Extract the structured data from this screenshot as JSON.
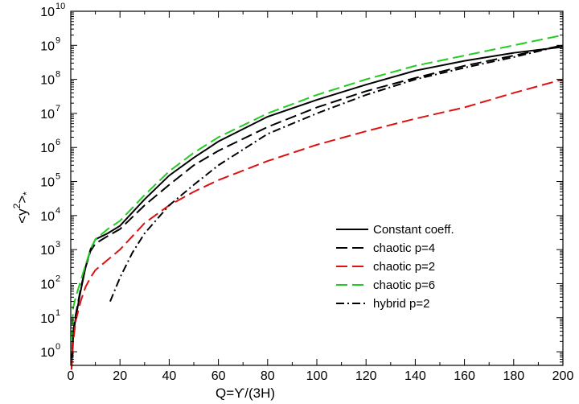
{
  "chart_data": {
    "type": "line",
    "title": "",
    "xlabel": "Q=ϒ/(3H)",
    "ylabel": "<y²>*",
    "ylabel_parts": {
      "open": "<y",
      "sup": "2",
      "close": ">",
      "sub": "*"
    },
    "xlim": [
      0,
      200
    ],
    "ylim_log10": [
      -0.4,
      10
    ],
    "yscale": "log",
    "grid": false,
    "legend_position": "right-center",
    "x_ticks": [
      0,
      20,
      40,
      60,
      80,
      100,
      120,
      140,
      160,
      180,
      200
    ],
    "x_tick_labels": [
      "0",
      "20",
      "40",
      "60",
      "80",
      "100",
      "120",
      "140",
      "160",
      "180",
      "200"
    ],
    "y_tick_exponents": [
      0,
      1,
      2,
      3,
      4,
      5,
      6,
      7,
      8,
      9,
      10
    ],
    "y_tick_base": "10",
    "series": [
      {
        "name": "Constant coeff.",
        "color": "#000000",
        "dash": "solid",
        "x": [
          0.3,
          1,
          2,
          4,
          6,
          8,
          10,
          15,
          20,
          30,
          40,
          50,
          60,
          80,
          100,
          120,
          140,
          160,
          180,
          200
        ],
        "y": [
          0.3,
          3,
          10,
          60,
          300,
          1000,
          2000,
          3000,
          5000,
          30000,
          150000,
          500000,
          1500000,
          8000000,
          25000000,
          70000000,
          180000000,
          350000000,
          600000000,
          900000000
        ]
      },
      {
        "name": "chaotic p=4",
        "color": "#000000",
        "dash": "long-dash",
        "x": [
          0.3,
          1,
          2,
          4,
          6,
          8,
          10,
          15,
          20,
          30,
          40,
          50,
          60,
          80,
          100,
          120,
          140,
          160,
          180,
          200
        ],
        "y": [
          0.4,
          4,
          12,
          70,
          300,
          900,
          1500,
          2500,
          4000,
          20000,
          80000,
          300000,
          800000,
          4000000,
          15000000,
          45000000,
          110000000,
          250000000,
          500000000,
          1000000000
        ]
      },
      {
        "name": "chaotic p=2",
        "color": "#dd1111",
        "dash": "long-dash",
        "x": [
          0.3,
          1,
          2,
          4,
          6,
          8,
          10,
          15,
          20,
          30,
          40,
          50,
          60,
          80,
          100,
          120,
          140,
          160,
          180,
          200
        ],
        "y": [
          0.3,
          2,
          8,
          30,
          80,
          150,
          250,
          500,
          1000,
          6000,
          20000,
          50000,
          110000,
          400000,
          1200000,
          3000000,
          7000000,
          15000000,
          40000000,
          100000000
        ]
      },
      {
        "name": "chaotic p=6",
        "color": "#22cc22",
        "dash": "long-dash",
        "x": [
          0.3,
          1,
          2,
          4,
          6,
          8,
          10,
          15,
          20,
          30,
          40,
          50,
          60,
          80,
          100,
          120,
          140,
          160,
          180,
          200
        ],
        "y": [
          2,
          20,
          40,
          120,
          350,
          1000,
          2000,
          4000,
          7000,
          40000,
          200000,
          700000,
          2000000,
          10000000,
          35000000,
          100000000,
          250000000,
          500000000,
          1000000000,
          2000000000
        ]
      },
      {
        "name": "hybrid p=2",
        "color": "#000000",
        "dash": "dash-dot",
        "x": [
          16,
          20,
          25,
          30,
          40,
          50,
          60,
          80,
          100,
          120,
          140,
          160,
          180,
          200
        ],
        "y": [
          30,
          150,
          800,
          3000,
          20000,
          80000,
          300000,
          2500000,
          10000000,
          35000000,
          100000000,
          220000000,
          450000000,
          1000000000
        ]
      }
    ]
  }
}
